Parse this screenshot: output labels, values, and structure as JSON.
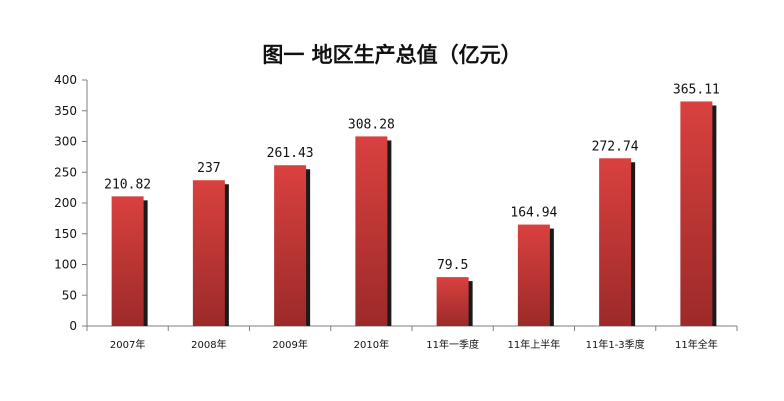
{
  "chart_data": {
    "type": "bar",
    "title": "图一 地区生产总值（亿元）",
    "xlabel": "",
    "ylabel": "",
    "categories": [
      "2007年",
      "2008年",
      "2009年",
      "2010年",
      "11年一季度",
      "11年上半年",
      "11年1-3季度",
      "11年全年"
    ],
    "values": [
      210.82,
      237,
      261.43,
      308.28,
      79.5,
      164.94,
      272.74,
      365.11
    ],
    "data_labels": [
      "210.82",
      "237",
      "261.43",
      "308.28",
      "79.5",
      "164.94",
      "272.74",
      "365.11"
    ],
    "ylim": [
      0,
      400
    ],
    "yticks": [
      0,
      50,
      100,
      150,
      200,
      250,
      300,
      350,
      400
    ],
    "ytick_labels": [
      "0",
      "50",
      "100",
      "150",
      "200",
      "250",
      "300",
      "350",
      "400"
    ],
    "grid": false,
    "legend": "none",
    "colors": {
      "bar_light": "#d9413f",
      "bar_dark": "#9c2a29",
      "bar_shadow": "#1a1a1a",
      "axis": "#7f7f7f"
    }
  }
}
